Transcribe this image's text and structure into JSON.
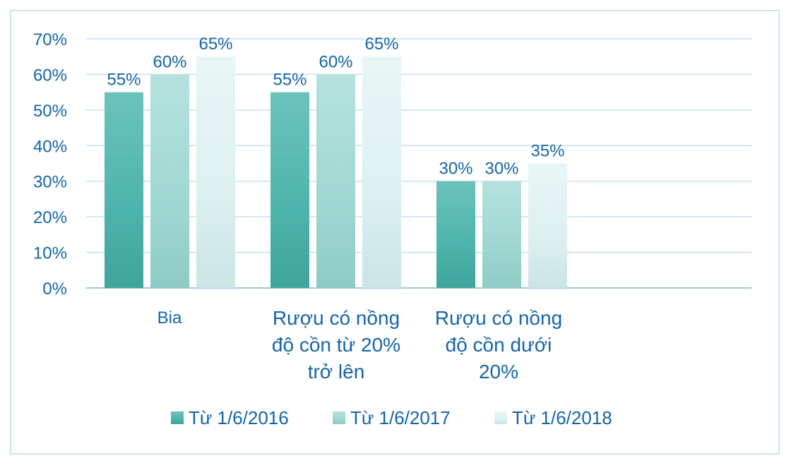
{
  "chart_data": {
    "type": "bar",
    "categories": [
      "Bia",
      "Rượu có nồng độ cồn từ 20% trở lên",
      "Rượu có nồng độ cồn dưới 20%"
    ],
    "category_lines": [
      [
        "Bia"
      ],
      [
        "Rượu có nồng",
        "độ cồn từ 20%",
        "trở lên"
      ],
      [
        "Rượu có nồng",
        "độ cồn dưới",
        "20%"
      ]
    ],
    "series": [
      {
        "name": "Từ 1/6/2016",
        "values": [
          55,
          55,
          30
        ],
        "labels": [
          "55%",
          "55%",
          "30%"
        ],
        "color": "#4aafa6"
      },
      {
        "name": "Từ 1/6/2017",
        "values": [
          60,
          60,
          30
        ],
        "labels": [
          "60%",
          "60%",
          "30%"
        ],
        "color": "#a3d9d4"
      },
      {
        "name": "Từ 1/6/2018",
        "values": [
          65,
          65,
          35
        ],
        "labels": [
          "65%",
          "65%",
          "35%"
        ],
        "color": "#dff1f1"
      }
    ],
    "yticks": [
      "0%",
      "10%",
      "20%",
      "30%",
      "40%",
      "50%",
      "60%",
      "70%"
    ],
    "ylim": [
      0,
      70
    ],
    "grid": true,
    "legend": "bottom",
    "title": "",
    "xlabel": "",
    "ylabel": ""
  }
}
